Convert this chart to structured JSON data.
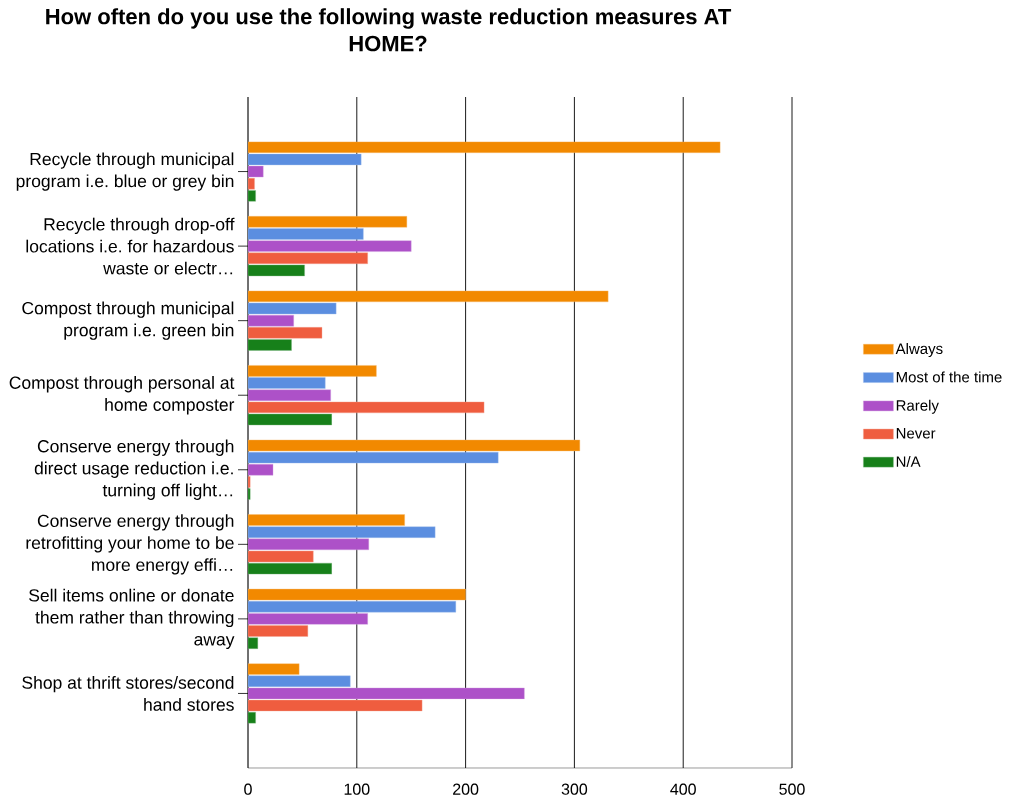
{
  "chart_data": {
    "type": "bar",
    "orientation": "horizontal",
    "title": "How often do you use the following waste reduction measures AT HOME?",
    "categories": [
      "Recycle through municipal program i.e. blue or grey bin",
      "Recycle through drop-off locations i.e. for hazardous waste or electr…",
      "Compost through municipal program i.e. green bin",
      "Compost through personal at home composter",
      "Conserve energy through direct usage reduction i.e. turning off light…",
      "Conserve energy through retrofitting your home to be more energy effi…",
      "Sell items online or donate them rather than throwing away",
      "Shop at thrift stores/second hand stores"
    ],
    "series": [
      {
        "name": "Always",
        "color": "#f28900",
        "values": [
          434,
          146,
          331,
          118,
          305,
          144,
          200,
          47
        ]
      },
      {
        "name": "Most of the time",
        "color": "#5b8ee0",
        "values": [
          104,
          106,
          81,
          71,
          230,
          172,
          191,
          94
        ]
      },
      {
        "name": "Rarely",
        "color": "#ad51c8",
        "values": [
          14,
          150,
          42,
          76,
          23,
          111,
          110,
          254
        ]
      },
      {
        "name": "Never",
        "color": "#ef5d3f",
        "values": [
          6,
          110,
          68,
          217,
          2,
          60,
          55,
          160
        ]
      },
      {
        "name": "N/A",
        "color": "#17801a",
        "values": [
          7,
          52,
          40,
          77,
          2,
          77,
          9,
          7
        ]
      }
    ],
    "xlim": [
      0,
      500
    ],
    "xticks": [
      0,
      100,
      200,
      300,
      400,
      500
    ],
    "grid": "x",
    "legend": "right"
  }
}
